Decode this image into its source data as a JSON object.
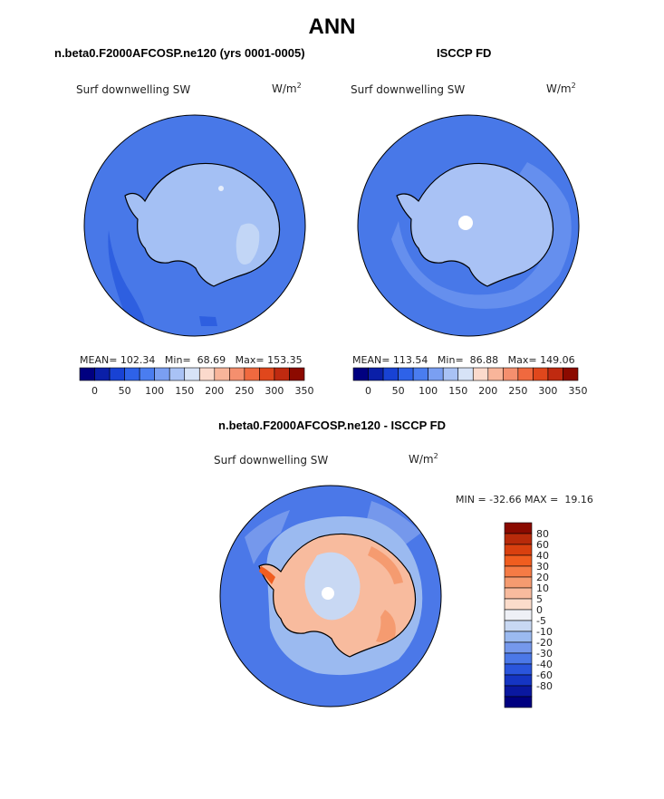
{
  "page": {
    "title": "ANN"
  },
  "chart_data": [
    {
      "type": "heatmap",
      "projection": "south polar stereographic",
      "case_title": "n.beta0.F2000AFCOSP.ne120 (yrs 0001-0005)",
      "variable": "Surf downwelling SW",
      "units_base": "W/m",
      "units_exp": "2",
      "stats": {
        "mean_label": "MEAN=",
        "mean": "102.34",
        "min_label": "Min=",
        "min": "68.69",
        "max_label": "Max=",
        "max": "153.35"
      },
      "colorbar_ticks": [
        "0",
        "50",
        "100",
        "150",
        "200",
        "250",
        "300",
        "350"
      ]
    },
    {
      "type": "heatmap",
      "projection": "south polar stereographic",
      "case_title": "ISCCP FD",
      "variable": "Surf downwelling SW",
      "units_base": "W/m",
      "units_exp": "2",
      "stats": {
        "mean_label": "MEAN=",
        "mean": "113.54",
        "min_label": "Min=",
        "min": "86.88",
        "max_label": "Max=",
        "max": "149.06"
      },
      "colorbar_ticks": [
        "0",
        "50",
        "100",
        "150",
        "200",
        "250",
        "300",
        "350"
      ]
    },
    {
      "type": "heatmap",
      "projection": "south polar stereographic",
      "case_title": "n.beta0.F2000AFCOSP.ne120 - ISCCP FD",
      "variable": "Surf downwelling SW",
      "units_base": "W/m",
      "units_exp": "2",
      "minmax_text": "MIN = -32.66 MAX =  19.16",
      "colorbar_labels": [
        "80",
        "60",
        "40",
        "30",
        "20",
        "10",
        "5",
        "0",
        "-5",
        "-10",
        "-20",
        "-30",
        "-40",
        "-60",
        "-80"
      ]
    }
  ],
  "colors": {
    "abs_scale": [
      "#000080",
      "#0a1fa8",
      "#1842d4",
      "#2e62e8",
      "#4a7df0",
      "#7a9ff2",
      "#a9c2f5",
      "#d7e3f7",
      "#fbdacc",
      "#f8b59a",
      "#f58f6e",
      "#f0693f",
      "#e0471c",
      "#c02a10",
      "#8c0a00"
    ],
    "diff_scale": [
      "#8a0a00",
      "#b82a0a",
      "#d9400f",
      "#f05d1f",
      "#f57b45",
      "#f59b70",
      "#f8bb9e",
      "#fbdccb",
      "#eef0f6",
      "#c8d8f3",
      "#9bbaf0",
      "#7598ec",
      "#4b78e8",
      "#2a55dc",
      "#1535c3",
      "#0a18a0",
      "#000080"
    ],
    "ocean_main": "#4878e8",
    "ocean_dark": "#2e5fe0",
    "land_low": "#a4c0f4",
    "land_mid": "#c2d6f6"
  }
}
